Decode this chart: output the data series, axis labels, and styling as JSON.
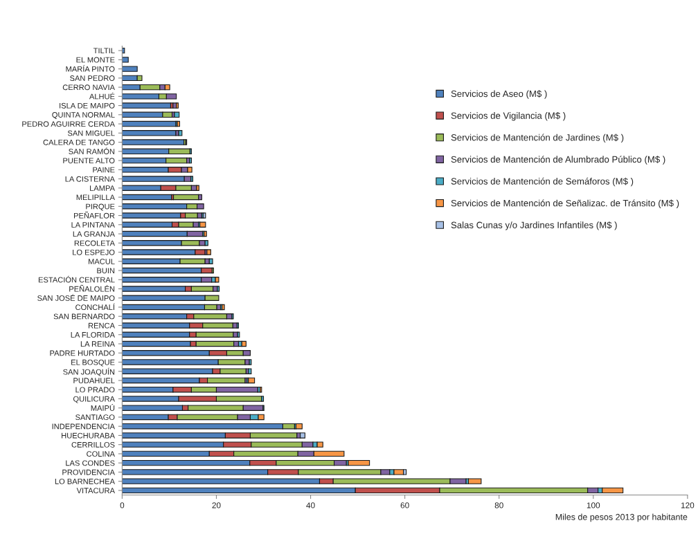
{
  "chart_data": {
    "type": "bar",
    "orientation": "horizontal",
    "stacked": true,
    "xlabel": "Miles de pesos 2013 por habitante",
    "categories": [
      "TILTIL",
      "EL MONTE",
      "MARÍA PINTO",
      "SAN PEDRO",
      "CERRO NAVIA",
      "ALHUÉ",
      "ISLA DE MAIPO",
      "QUINTA NORMAL",
      "PEDRO AGUIRRE CERDA",
      "SAN MIGUEL",
      "CALERA DE TANGO",
      "SAN RAMÓN",
      "PUENTE ALTO",
      "PAINE",
      "LA CISTERNA",
      "LAMPA",
      "MELIPILLA",
      "PIRQUE",
      "PEÑAFLOR",
      "LA PINTANA",
      "LA GRANJA",
      "RECOLETA",
      "LO ESPEJO",
      "MACUL",
      "BUIN",
      "ESTACIÓN CENTRAL",
      "PEÑALOLÉN",
      "SAN JOSÉ DE MAIPO",
      "CONCHALÍ",
      "SAN BERNARDO",
      "RENCA",
      "LA FLORIDA",
      "LA REINA",
      "PADRE HURTADO",
      "EL BOSQUE",
      "SAN JOAQUÍN",
      "PUDAHUEL",
      "LO PRADO",
      "QUILICURA",
      "MAIPÚ",
      "SANTIAGO",
      "INDEPENDENCIA",
      "HUECHURABA",
      "CERRILLOS",
      "COLINA",
      "LAS CONDES",
      "PROVIDENCIA",
      "LO BARNECHEA",
      "VITACURA"
    ],
    "series": [
      {
        "name": "Servicios de Aseo (M$ )",
        "color": "#4f81bd",
        "values": [
          0.5,
          1.3,
          3.2,
          3.2,
          3.8,
          7.8,
          10.3,
          8.6,
          11.4,
          11.4,
          13.1,
          9.9,
          9.3,
          9.8,
          13.2,
          8.2,
          10.5,
          13.7,
          12.4,
          10.6,
          13.8,
          12.6,
          15.5,
          12.3,
          16.8,
          16.8,
          13.4,
          17.6,
          17.5,
          13.7,
          14.3,
          14.3,
          14.5,
          18.5,
          20.4,
          19.2,
          16.4,
          10.8,
          12.0,
          12.8,
          9.8,
          34.1,
          21.9,
          21.5,
          18.5,
          27.1,
          30.9,
          41.9,
          49.5
        ]
      },
      {
        "name": "Servicios de Vigilancia (M$ )",
        "color": "#c0504d",
        "values": [
          null,
          null,
          null,
          null,
          null,
          null,
          0.5,
          null,
          null,
          null,
          null,
          null,
          null,
          2.8,
          null,
          3.2,
          0.4,
          null,
          1.0,
          1.4,
          null,
          null,
          2.1,
          null,
          2.3,
          null,
          1.3,
          null,
          null,
          1.5,
          2.8,
          1.4,
          1.2,
          3.7,
          null,
          1.6,
          1.7,
          3.9,
          8.0,
          1.2,
          1.9,
          null,
          5.3,
          5.9,
          5.2,
          5.6,
          6.5,
          2.9,
          17.9
        ]
      },
      {
        "name": "Servicios de Mantención de Jardines (M$ )",
        "color": "#9bbb59",
        "values": [
          null,
          null,
          null,
          1.0,
          4.2,
          1.6,
          null,
          2.0,
          null,
          null,
          0.4,
          4.5,
          4.4,
          null,
          null,
          3.3,
          5.3,
          2.2,
          2.6,
          3.1,
          null,
          3.8,
          null,
          5.3,
          0.3,
          null,
          4.6,
          2.9,
          2.6,
          7.0,
          6.4,
          7.9,
          8.0,
          3.5,
          5.7,
          5.5,
          8.0,
          5.3,
          9.6,
          11.7,
          12.8,
          2.5,
          9.9,
          10.8,
          13.6,
          12.3,
          17.5,
          24.8,
          31.4
        ]
      },
      {
        "name": "Servicios de Mantención de Alumbrado Público (M$ )",
        "color": "#8064a2",
        "values": [
          null,
          null,
          null,
          null,
          1.1,
          2.1,
          0.7,
          0.5,
          null,
          0.6,
          0.2,
          null,
          0.6,
          1.3,
          1.4,
          1.1,
          0.7,
          1.4,
          0.9,
          1.1,
          3.3,
          1.2,
          0.4,
          0.9,
          null,
          2.2,
          0.9,
          null,
          0.8,
          1.1,
          0.9,
          0.9,
          1.0,
          1.5,
          0.9,
          0.5,
          0.4,
          8.8,
          null,
          4.2,
          2.7,
          null,
          0.7,
          2.3,
          3.4,
          2.6,
          1.9,
          3.4,
          2.2
        ]
      },
      {
        "name": "Servicios de Mantención de Semáforos (M$ )",
        "color": "#4bacc6",
        "values": [
          null,
          null,
          null,
          null,
          null,
          null,
          null,
          1.0,
          0.3,
          0.7,
          null,
          0.3,
          0.4,
          null,
          0.4,
          null,
          null,
          null,
          0.3,
          0.3,
          0.3,
          0.6,
          null,
          0.7,
          null,
          0.8,
          0.4,
          null,
          0.3,
          0.3,
          0.3,
          0.4,
          0.7,
          null,
          0.4,
          0.6,
          0.3,
          0.5,
          0.4,
          0.2,
          1.7,
          0.3,
          null,
          0.9,
          null,
          0.4,
          0.9,
          0.5,
          0.9
        ]
      },
      {
        "name": "Servicios de Mantención de Señalizac. de Tránsito (M$ )",
        "color": "#f79646",
        "values": [
          null,
          null,
          null,
          null,
          1.0,
          null,
          0.4,
          null,
          0.5,
          null,
          null,
          null,
          null,
          0.9,
          null,
          0.5,
          null,
          null,
          null,
          1.2,
          0.5,
          null,
          0.8,
          null,
          null,
          0.7,
          null,
          null,
          0.5,
          null,
          null,
          null,
          0.9,
          null,
          null,
          null,
          1.3,
          0.3,
          null,
          null,
          1.2,
          1.3,
          null,
          1.2,
          6.4,
          4.5,
          2.0,
          2.7,
          4.4
        ]
      },
      {
        "name": "Salas Cunas y/o Jardines Infantiles (M$ )",
        "color": "#a7c0e6",
        "values": [
          null,
          null,
          null,
          null,
          null,
          null,
          null,
          null,
          null,
          null,
          null,
          null,
          null,
          null,
          null,
          null,
          null,
          null,
          0.5,
          null,
          null,
          null,
          null,
          null,
          null,
          null,
          null,
          null,
          null,
          null,
          null,
          null,
          null,
          null,
          null,
          null,
          null,
          null,
          null,
          null,
          null,
          null,
          1.0,
          null,
          null,
          null,
          0.6,
          null,
          null
        ]
      }
    ],
    "xlim": [
      0,
      120
    ],
    "xticks": [
      0,
      20,
      40,
      60,
      80,
      100,
      120
    ],
    "grid": false,
    "legend": "top right"
  }
}
